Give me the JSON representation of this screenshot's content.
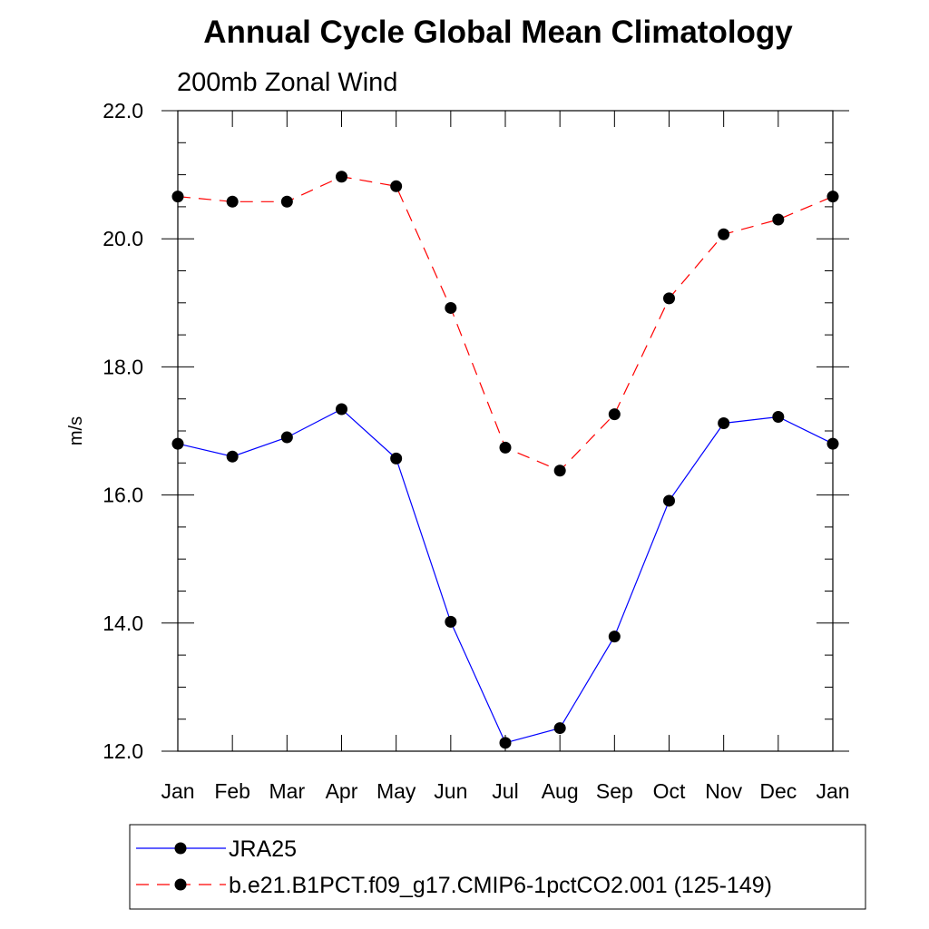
{
  "chart_data": {
    "type": "line",
    "title": "Annual Cycle Global Mean Climatology",
    "subtitle": "200mb Zonal Wind",
    "xlabel": "",
    "ylabel": "m/s",
    "ylim": [
      12.0,
      22.0
    ],
    "yticks": [
      "12.0",
      "14.0",
      "16.0",
      "18.0",
      "20.0",
      "22.0"
    ],
    "categories": [
      "Jan",
      "Feb",
      "Mar",
      "Apr",
      "May",
      "Jun",
      "Jul",
      "Aug",
      "Sep",
      "Oct",
      "Nov",
      "Dec",
      "Jan"
    ],
    "grid": false,
    "legend_position": "bottom",
    "series": [
      {
        "name": "JRA25",
        "color": "#0000ff",
        "dash": "solid",
        "marker": "filled-circle",
        "values": [
          16.8,
          16.6,
          16.9,
          17.34,
          16.57,
          14.02,
          12.13,
          12.36,
          13.79,
          15.91,
          17.12,
          17.22,
          16.8
        ]
      },
      {
        "name": "b.e21.B1PCT.f09_g17.CMIP6-1pctCO2.001 (125-149)",
        "color": "#ff0000",
        "dash": "dashed",
        "marker": "filled-circle",
        "values": [
          20.66,
          20.58,
          20.58,
          20.97,
          20.82,
          18.92,
          16.74,
          16.38,
          17.26,
          19.07,
          20.07,
          20.3,
          20.66
        ]
      }
    ]
  }
}
